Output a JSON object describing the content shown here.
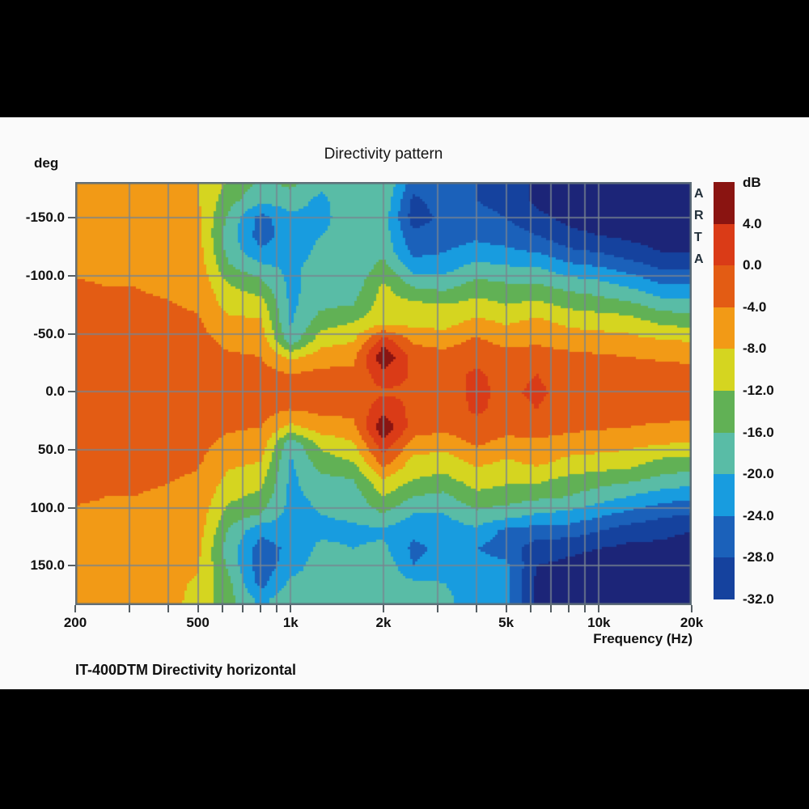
{
  "window": {
    "letterbox_color": "#000000",
    "panel_background": "#fafafa"
  },
  "header": {
    "title": "Directivity pattern"
  },
  "y_axis": {
    "unit_label": "deg",
    "ticks": [
      {
        "label": "-150.0",
        "angle": -150
      },
      {
        "label": "-100.0",
        "angle": -100
      },
      {
        "label": "-50.0",
        "angle": -50
      },
      {
        "label": "0.0",
        "angle": 0
      },
      {
        "label": "50.0",
        "angle": 50
      },
      {
        "label": "100.0",
        "angle": 100
      },
      {
        "label": "150.0",
        "angle": 150
      }
    ]
  },
  "x_axis": {
    "label": "Frequency (Hz)",
    "ticks": [
      {
        "label": "200",
        "f": 200
      },
      {
        "label": "500",
        "f": 500
      },
      {
        "label": "1k",
        "f": 1000
      },
      {
        "label": "2k",
        "f": 2000
      },
      {
        "label": "5k",
        "f": 5000
      },
      {
        "label": "10k",
        "f": 10000
      },
      {
        "label": "20k",
        "f": 20000
      }
    ],
    "minor_tick_freqs": [
      200,
      300,
      400,
      500,
      600,
      700,
      800,
      900,
      1000,
      2000,
      3000,
      4000,
      5000,
      6000,
      7000,
      8000,
      9000,
      10000,
      20000
    ]
  },
  "colorbar": {
    "unit_label": "dB",
    "segment_colors": [
      "#8A1411",
      "#DA3B17",
      "#E35C14",
      "#F29A16",
      "#D5D520",
      "#61B155",
      "#59BCA6",
      "#189CDF",
      "#1B61BA",
      "#15429E"
    ],
    "boundary_labels": [
      "4.0",
      "0.0",
      "-4.0",
      "-8.0",
      "-12.0",
      "-16.0",
      "-20.0",
      "-24.0",
      "-28.0",
      "-32.0"
    ]
  },
  "watermark": {
    "text": "A\nR\nT\nA"
  },
  "footer": {
    "caption": "IT-400DTM Directivity horizontal"
  },
  "chart_data": {
    "type": "heatmap",
    "title": "Directivity pattern",
    "xlabel": "Frequency (Hz)",
    "ylabel": "deg",
    "x_scale": "log",
    "x_range_hz": [
      200,
      20000
    ],
    "y_range_deg": [
      -181,
      184
    ],
    "grid": {
      "x_lines_hz": [
        300,
        400,
        500,
        600,
        700,
        800,
        900,
        1000,
        2000,
        3000,
        4000,
        5000,
        6000,
        7000,
        8000,
        9000,
        10000
      ],
      "y_lines_deg": [
        -150,
        -100,
        -50,
        0,
        50,
        100,
        150
      ],
      "gridline_color": "#78848F",
      "border_color": "#5F6E78"
    },
    "levels_db": [
      4,
      0,
      -4,
      -8,
      -12,
      -16,
      -20,
      -24,
      -28,
      -32
    ],
    "level_colors": [
      "#8A1411",
      "#DA3B17",
      "#E35C14",
      "#F29A16",
      "#D5D520",
      "#61B155",
      "#59BCA6",
      "#189CDF",
      "#1B61BA",
      "#15429E",
      "#1C2578"
    ],
    "frequencies_hz": [
      200,
      250,
      315,
      400,
      500,
      630,
      800,
      1000,
      1250,
      1600,
      2000,
      2500,
      3150,
      4000,
      5000,
      6300,
      8000,
      10000,
      12500,
      16000,
      20000
    ],
    "angles_deg": [
      -180,
      -165,
      -150,
      -135,
      -120,
      -105,
      -90,
      -75,
      -60,
      -45,
      -30,
      -15,
      0,
      15,
      30,
      45,
      60,
      75,
      90,
      105,
      120,
      135,
      150,
      165,
      180
    ],
    "values_db_by_frequency": [
      [
        -6.5,
        -6,
        -6,
        -5.5,
        -5,
        -4.5,
        -3.5,
        -3,
        -2.5,
        -2.5,
        -2,
        -2,
        -1.5,
        -2,
        -2,
        -2.5,
        -2.5,
        -3,
        -3.5,
        -4.5,
        -5,
        -5.5,
        -6,
        -6,
        -6.5
      ],
      [
        -7,
        -6.5,
        -6,
        -5.5,
        -5,
        -4.5,
        -4,
        -3,
        -2.5,
        -2.5,
        -2,
        -2,
        -1.5,
        -2,
        -2,
        -2.5,
        -2.5,
        -3,
        -4,
        -4.5,
        -5,
        -5.5,
        -6,
        -6.5,
        -7
      ],
      [
        -7.2,
        -7,
        -6.5,
        -6,
        -5.5,
        -5,
        -4,
        -3.5,
        -3,
        -2.5,
        -2,
        -2,
        -1.5,
        -2,
        -2,
        -2.5,
        -3,
        -3.5,
        -4,
        -5,
        -5.5,
        -6,
        -6.5,
        -7,
        -7
      ],
      [
        -7.5,
        -7,
        -6.5,
        -6,
        -5.5,
        -5,
        -4.5,
        -3.8,
        -3,
        -2.5,
        -2,
        -2,
        -1.5,
        -2,
        -2,
        -2.5,
        -3,
        -3.8,
        -4.5,
        -5,
        -5.5,
        -6,
        -6.5,
        -7,
        -7
      ],
      [
        -7.8,
        -7.5,
        -7.2,
        -7,
        -6,
        -5.5,
        -5,
        -4.5,
        -3.5,
        -3,
        -2.5,
        -2,
        -1.5,
        -2,
        -2.5,
        -3,
        -3.5,
        -4.5,
        -5,
        -5.5,
        -6,
        -7,
        -7.5,
        -8.5,
        -9
      ],
      [
        -12.5,
        -14.5,
        -17,
        -18,
        -17.5,
        -15,
        -11.5,
        -9.5,
        -7,
        -5,
        -3.5,
        -2.5,
        -2,
        -2.5,
        -3.5,
        -5,
        -7,
        -9,
        -11,
        -13.5,
        -16.5,
        -18,
        -17,
        -15,
        -14.5
      ],
      [
        -17,
        -19,
        -25.5,
        -26,
        -23,
        -18,
        -14,
        -10,
        -7.5,
        -5.5,
        -4,
        -2.5,
        -2,
        -2.5,
        -4,
        -5.5,
        -8,
        -10.5,
        -13,
        -16,
        -23,
        -26,
        -26.5,
        -25.5,
        -21
      ],
      [
        -15,
        -18,
        -21,
        -22,
        -22,
        -21,
        -21,
        -21,
        -20.5,
        -19,
        -9,
        -4,
        -2.5,
        -4,
        -9,
        -19,
        -20.5,
        -21,
        -21,
        -21.5,
        -22,
        -23,
        -22,
        -19,
        -17
      ],
      [
        -19,
        -21,
        -21,
        -20,
        -19,
        -18,
        -18,
        -17,
        -14,
        -10,
        -6,
        -3,
        -2.5,
        -3,
        -6,
        -11,
        -14,
        -17,
        -19,
        -20,
        -21,
        -19,
        -18,
        -18,
        -18
      ],
      [
        -16.5,
        -17,
        -18,
        -19,
        -19,
        -19,
        -18,
        -16,
        -12,
        -8.5,
        -5,
        -3,
        -2,
        -3,
        -5,
        -8.5,
        -12,
        -16,
        -18,
        -19,
        -21,
        -20,
        -18,
        -17,
        -16
      ],
      [
        -16,
        -17,
        -18,
        -18,
        -17,
        -14,
        -11,
        -10,
        -9.5,
        1.5,
        7.5,
        2.5,
        -0.5,
        2.5,
        7.5,
        2.5,
        -2,
        -8,
        -12,
        -16,
        -21,
        -19,
        -17,
        -18,
        -18
      ],
      [
        -26,
        -29,
        -30,
        -27,
        -25,
        -21,
        -16,
        -11,
        -9.5,
        -5,
        -1.5,
        -0.5,
        -0.5,
        -1,
        -2,
        -5.5,
        -9.5,
        -12,
        -16,
        -20,
        -23,
        -25,
        -24,
        -19,
        -18.5
      ],
      [
        -24,
        -26,
        -27,
        -26,
        -24,
        -21,
        -17,
        -12,
        -9.5,
        -6,
        -2.5,
        -1,
        -1,
        -1.5,
        -3,
        -6.5,
        -10,
        -13,
        -17,
        -20,
        -22,
        -23,
        -22,
        -20,
        -19
      ],
      [
        -28,
        -28,
        -27,
        -25,
        -22,
        -18,
        -14,
        -10.5,
        -7,
        -3.5,
        -1,
        0.5,
        0.5,
        0.5,
        -1,
        -3.5,
        -7,
        -10,
        -13,
        -17,
        -21,
        -24,
        -22,
        -22,
        -22
      ],
      [
        -29,
        -29,
        -28,
        -26,
        -23,
        -19,
        -15,
        -12,
        -8.5,
        -5.5,
        -2.5,
        -1,
        -0.5,
        -1,
        -2.5,
        -5.5,
        -8.5,
        -11,
        -14,
        -18,
        -25,
        -26,
        -23,
        -23,
        -23
      ],
      [
        -33,
        -33,
        -31,
        -28,
        -24,
        -19,
        -15,
        -11,
        -7,
        -5,
        -2,
        0,
        0.5,
        0,
        -2,
        -5,
        -7,
        -11,
        -15,
        -20,
        -26,
        -30,
        -32,
        -33,
        -33
      ],
      [
        -34,
        -34,
        -33,
        -31,
        -27,
        -22,
        -17,
        -13,
        -9,
        -6,
        -3,
        -1.5,
        -1,
        -1.5,
        -3,
        -6,
        -9,
        -13,
        -16,
        -21,
        -26,
        -31,
        -33,
        -34,
        -34
      ],
      [
        -34,
        -34,
        -34,
        -32,
        -28,
        -23,
        -18,
        -14,
        -9.5,
        -6.5,
        -3.5,
        -2,
        -1,
        -2,
        -3.5,
        -6.5,
        -9.5,
        -14,
        -18,
        -23,
        -28,
        -32,
        -34,
        -34,
        -34
      ],
      [
        -34,
        -34,
        -34,
        -33,
        -30,
        -25,
        -20,
        -15,
        -10,
        -7,
        -4,
        -2.5,
        -1.5,
        -2.5,
        -4,
        -7,
        -10,
        -15,
        -20,
        -25,
        -30,
        -33,
        -34,
        -34,
        -34
      ],
      [
        -34,
        -34,
        -34,
        -34,
        -32,
        -28,
        -23,
        -18,
        -13,
        -8,
        -4.5,
        -2.5,
        -1.5,
        -2.5,
        -4.5,
        -8,
        -13,
        -17,
        -22,
        -27,
        -31,
        -33,
        -34,
        -34,
        -34
      ],
      [
        -34,
        -34,
        -34,
        -34,
        -32,
        -28,
        -23,
        -18,
        -13.5,
        -8.5,
        -5,
        -2.5,
        -1.5,
        -2.5,
        -5,
        -8.5,
        -13.5,
        -18,
        -23,
        -28,
        -32,
        -34,
        -34,
        -34,
        -34
      ]
    ]
  }
}
